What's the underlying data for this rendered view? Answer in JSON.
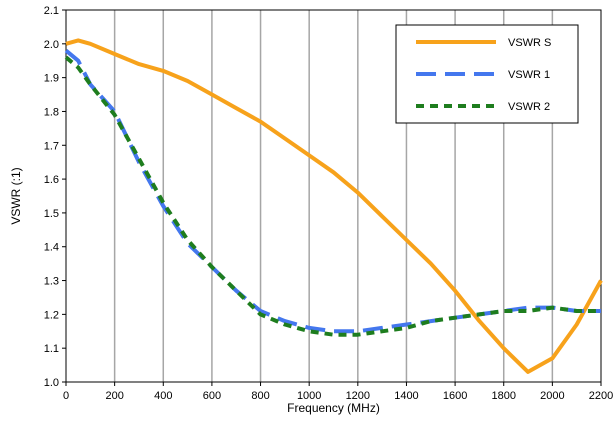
{
  "chart_data": {
    "type": "line",
    "xlabel": "Frequency (MHz)",
    "ylabel": "VSWR (:1)",
    "xlim": [
      0,
      2200
    ],
    "ylim": [
      1.0,
      2.1
    ],
    "grid": "vertical",
    "legend_position": "top-right",
    "x_ticks": [
      "0",
      "200",
      "400",
      "600",
      "800",
      "1000",
      "1200",
      "1400",
      "1600",
      "1800",
      "2000",
      "2200"
    ],
    "y_ticks": [
      "1.0",
      "1.1",
      "1.2",
      "1.3",
      "1.4",
      "1.5",
      "1.6",
      "1.7",
      "1.8",
      "1.9",
      "2.0",
      "2.1"
    ],
    "series": [
      {
        "name": "VSWR S",
        "color": "#f7a21b",
        "dash": "solid",
        "x": [
          0,
          50,
          100,
          200,
          300,
          400,
          500,
          600,
          700,
          800,
          900,
          1000,
          1100,
          1200,
          1300,
          1400,
          1500,
          1600,
          1700,
          1800,
          1900,
          2000,
          2100,
          2200
        ],
        "y": [
          2.0,
          2.01,
          2.0,
          1.97,
          1.94,
          1.92,
          1.89,
          1.85,
          1.81,
          1.77,
          1.72,
          1.67,
          1.62,
          1.56,
          1.49,
          1.42,
          1.35,
          1.27,
          1.18,
          1.1,
          1.03,
          1.07,
          1.17,
          1.3
        ]
      },
      {
        "name": "VSWR 1",
        "color": "#4477ee",
        "dash": "long",
        "x": [
          0,
          50,
          100,
          200,
          300,
          400,
          500,
          600,
          700,
          800,
          900,
          1000,
          1100,
          1200,
          1300,
          1400,
          1500,
          1600,
          1700,
          1800,
          1900,
          2000,
          2100,
          2200
        ],
        "y": [
          1.98,
          1.95,
          1.88,
          1.8,
          1.65,
          1.52,
          1.41,
          1.34,
          1.27,
          1.21,
          1.18,
          1.16,
          1.15,
          1.15,
          1.16,
          1.17,
          1.18,
          1.19,
          1.2,
          1.21,
          1.22,
          1.22,
          1.21,
          1.21
        ]
      },
      {
        "name": "VSWR 2",
        "color": "#1e7d1e",
        "dash": "short",
        "x": [
          0,
          50,
          100,
          200,
          300,
          400,
          500,
          600,
          700,
          800,
          900,
          1000,
          1100,
          1200,
          1300,
          1400,
          1500,
          1600,
          1700,
          1800,
          1900,
          2000,
          2100,
          2200
        ],
        "y": [
          1.96,
          1.93,
          1.88,
          1.79,
          1.66,
          1.53,
          1.42,
          1.34,
          1.27,
          1.2,
          1.17,
          1.15,
          1.14,
          1.14,
          1.15,
          1.16,
          1.18,
          1.19,
          1.2,
          1.21,
          1.21,
          1.22,
          1.21,
          1.21
        ]
      }
    ]
  }
}
